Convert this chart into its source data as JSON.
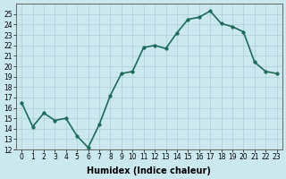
{
  "x": [
    0,
    1,
    2,
    3,
    4,
    5,
    6,
    7,
    8,
    9,
    10,
    11,
    12,
    13,
    14,
    15,
    16,
    17,
    18,
    19,
    20,
    21,
    22,
    23
  ],
  "y": [
    16.5,
    14.2,
    15.5,
    14.8,
    15.0,
    13.3,
    12.2,
    14.4,
    17.2,
    19.3,
    19.5,
    21.8,
    22.0,
    21.7,
    23.2,
    24.5,
    24.7,
    25.3,
    24.1,
    23.8,
    23.3,
    20.4,
    19.5,
    19.3
  ],
  "line_color": "#1a6b5a",
  "marker": "o",
  "marker_size": 2.5,
  "bg_color": "#cce8ef",
  "grid_color": "#aacdd6",
  "xlabel": "Humidex (Indice chaleur)",
  "xlim": [
    -0.5,
    23.5
  ],
  "ylim": [
    12,
    26
  ],
  "yticks": [
    12,
    13,
    14,
    15,
    16,
    17,
    18,
    19,
    20,
    21,
    22,
    23,
    24,
    25
  ],
  "xticks": [
    0,
    1,
    2,
    3,
    4,
    5,
    6,
    7,
    8,
    9,
    10,
    11,
    12,
    13,
    14,
    15,
    16,
    17,
    18,
    19,
    20,
    21,
    22,
    23
  ],
  "tick_fontsize": 5.5,
  "xlabel_fontsize": 7,
  "line_width": 1.2
}
